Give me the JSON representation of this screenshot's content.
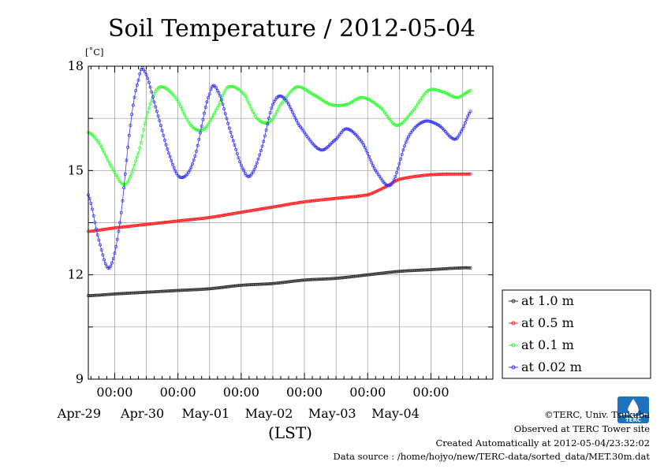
{
  "chart_data": {
    "type": "line",
    "title": "Soil Temperature / 2012-05-04",
    "ylabel": "[˚C]",
    "xlabel": "(LST)",
    "ylim": [
      9,
      18
    ],
    "y_ticks": [
      "9",
      "12",
      "15",
      "18"
    ],
    "x_start": "2012-04-28T14:00",
    "x_end": "2012-05-04T23:30",
    "x_ticks": [
      {
        "time": "2012-04-29T00:00",
        "hour_label": "00:00",
        "date_label": "Apr-29"
      },
      {
        "time": "2012-04-30T00:00",
        "hour_label": "00:00",
        "date_label": "Apr-30"
      },
      {
        "time": "2012-05-01T00:00",
        "hour_label": "00:00",
        "date_label": "May-01"
      },
      {
        "time": "2012-05-02T00:00",
        "hour_label": "00:00",
        "date_label": "May-02"
      },
      {
        "time": "2012-05-03T00:00",
        "hour_label": "00:00",
        "date_label": "May-03"
      },
      {
        "time": "2012-05-04T00:00",
        "hour_label": "00:00",
        "date_label": "May-04"
      }
    ],
    "grid": true,
    "legend_position": "right",
    "series": [
      {
        "name": "at 1.0 m",
        "color": "#333333",
        "points": [
          [
            "2012-04-28T14:00",
            11.4
          ],
          [
            "2012-04-29T00:00",
            11.45
          ],
          [
            "2012-04-29T12:00",
            11.5
          ],
          [
            "2012-04-30T00:00",
            11.55
          ],
          [
            "2012-04-30T12:00",
            11.6
          ],
          [
            "2012-05-01T00:00",
            11.7
          ],
          [
            "2012-05-01T12:00",
            11.75
          ],
          [
            "2012-05-02T00:00",
            11.85
          ],
          [
            "2012-05-02T12:00",
            11.9
          ],
          [
            "2012-05-03T00:00",
            12.0
          ],
          [
            "2012-05-03T12:00",
            12.1
          ],
          [
            "2012-05-04T00:00",
            12.15
          ],
          [
            "2012-05-04T12:00",
            12.2
          ],
          [
            "2012-05-04T15:00",
            12.2
          ]
        ]
      },
      {
        "name": "at 0.5 m",
        "color": "#ff2020",
        "points": [
          [
            "2012-04-28T14:00",
            13.25
          ],
          [
            "2012-04-29T00:00",
            13.35
          ],
          [
            "2012-04-29T12:00",
            13.45
          ],
          [
            "2012-04-30T00:00",
            13.55
          ],
          [
            "2012-04-30T12:00",
            13.65
          ],
          [
            "2012-05-01T00:00",
            13.8
          ],
          [
            "2012-05-01T12:00",
            13.95
          ],
          [
            "2012-05-02T00:00",
            14.1
          ],
          [
            "2012-05-02T12:00",
            14.2
          ],
          [
            "2012-05-03T00:00",
            14.3
          ],
          [
            "2012-05-03T06:00",
            14.5
          ],
          [
            "2012-05-03T12:00",
            14.75
          ],
          [
            "2012-05-04T00:00",
            14.88
          ],
          [
            "2012-05-04T15:00",
            14.9
          ]
        ]
      },
      {
        "name": "at 0.1 m",
        "color": "#30ff30",
        "points": [
          [
            "2012-04-28T14:00",
            16.1
          ],
          [
            "2012-04-28T18:00",
            15.8
          ],
          [
            "2012-04-28T22:00",
            15.2
          ],
          [
            "2012-04-29T04:00",
            14.6
          ],
          [
            "2012-04-29T09:00",
            15.5
          ],
          [
            "2012-04-29T13:00",
            16.8
          ],
          [
            "2012-04-29T17:00",
            17.4
          ],
          [
            "2012-04-29T23:00",
            17.1
          ],
          [
            "2012-04-30T05:00",
            16.3
          ],
          [
            "2012-04-30T10:00",
            16.2
          ],
          [
            "2012-04-30T15:00",
            16.8
          ],
          [
            "2012-04-30T19:00",
            17.4
          ],
          [
            "2012-05-01T01:00",
            17.2
          ],
          [
            "2012-05-01T06:00",
            16.5
          ],
          [
            "2012-05-01T11:00",
            16.4
          ],
          [
            "2012-05-01T15:00",
            16.9
          ],
          [
            "2012-05-01T21:00",
            17.4
          ],
          [
            "2012-05-02T03:00",
            17.2
          ],
          [
            "2012-05-02T10:00",
            16.9
          ],
          [
            "2012-05-02T16:00",
            16.9
          ],
          [
            "2012-05-02T22:00",
            17.1
          ],
          [
            "2012-05-03T05:00",
            16.8
          ],
          [
            "2012-05-03T11:00",
            16.3
          ],
          [
            "2012-05-03T17:00",
            16.7
          ],
          [
            "2012-05-03T23:00",
            17.3
          ],
          [
            "2012-05-04T05:00",
            17.25
          ],
          [
            "2012-05-04T10:00",
            17.1
          ],
          [
            "2012-05-04T15:00",
            17.3
          ]
        ]
      },
      {
        "name": "at 0.02 m",
        "color": "#3333ff",
        "points": [
          [
            "2012-04-28T14:00",
            14.3
          ],
          [
            "2012-04-28T18:00",
            13.0
          ],
          [
            "2012-04-28T22:00",
            12.2
          ],
          [
            "2012-04-29T02:00",
            13.5
          ],
          [
            "2012-04-29T06:00",
            16.3
          ],
          [
            "2012-04-29T09:00",
            17.6
          ],
          [
            "2012-04-29T11:00",
            17.9
          ],
          [
            "2012-04-29T16:00",
            16.7
          ],
          [
            "2012-04-29T21:00",
            15.4
          ],
          [
            "2012-04-30T01:00",
            14.8
          ],
          [
            "2012-04-30T06:00",
            15.3
          ],
          [
            "2012-04-30T12:00",
            17.2
          ],
          [
            "2012-04-30T15:00",
            17.3
          ],
          [
            "2012-04-30T20:00",
            16.1
          ],
          [
            "2012-05-01T01:00",
            15.0
          ],
          [
            "2012-05-01T04:00",
            14.9
          ],
          [
            "2012-05-01T08:00",
            15.7
          ],
          [
            "2012-05-01T12:00",
            16.9
          ],
          [
            "2012-05-01T16:00",
            17.1
          ],
          [
            "2012-05-01T22:00",
            16.3
          ],
          [
            "2012-05-02T06:00",
            15.6
          ],
          [
            "2012-05-02T12:00",
            15.9
          ],
          [
            "2012-05-02T16:00",
            16.2
          ],
          [
            "2012-05-02T22:00",
            15.8
          ],
          [
            "2012-05-03T03:00",
            15.0
          ],
          [
            "2012-05-03T09:00",
            14.6
          ],
          [
            "2012-05-03T15:00",
            15.9
          ],
          [
            "2012-05-03T21:00",
            16.4
          ],
          [
            "2012-05-04T03:00",
            16.3
          ],
          [
            "2012-05-04T09:00",
            15.9
          ],
          [
            "2012-05-04T12:00",
            16.2
          ],
          [
            "2012-05-04T15:00",
            16.7
          ]
        ]
      }
    ]
  },
  "credits": {
    "copyright": "©TERC, Univ. Tsukuba",
    "observed": "Observed at TERC Tower site",
    "created": "Created Automatically at 2012-05-04/23:32:02",
    "source": "Data source : /home/hojyo/new/TERC-data/sorted_data/MET.30m.dat"
  },
  "logo": {
    "text": "TERC",
    "color": "#1e73be"
  }
}
